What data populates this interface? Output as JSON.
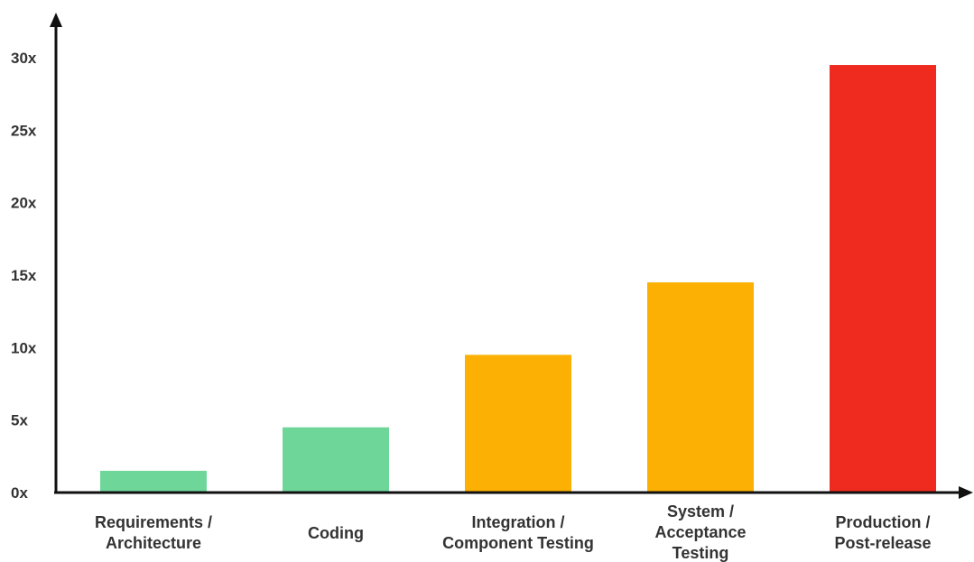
{
  "chart_data": {
    "type": "bar",
    "categories": [
      [
        "Requirements /",
        "Architecture"
      ],
      [
        "Coding"
      ],
      [
        "Integration /",
        "Component Testing"
      ],
      [
        "System /",
        "Acceptance",
        "Testing"
      ],
      [
        "Production /",
        "Post-release"
      ]
    ],
    "values": [
      1.5,
      4.5,
      9.5,
      14.5,
      29.5
    ],
    "colors": [
      "#6fd69a",
      "#6fd69a",
      "#fbb003",
      "#fbb003",
      "#ef2b20"
    ],
    "yticks": [
      0,
      5,
      10,
      15,
      20,
      25,
      30
    ],
    "ytick_labels": [
      "0x",
      "5x",
      "10x",
      "15x",
      "20x",
      "25x",
      "30x"
    ],
    "ylim": [
      0,
      30
    ],
    "grid": false,
    "legend": "none"
  }
}
